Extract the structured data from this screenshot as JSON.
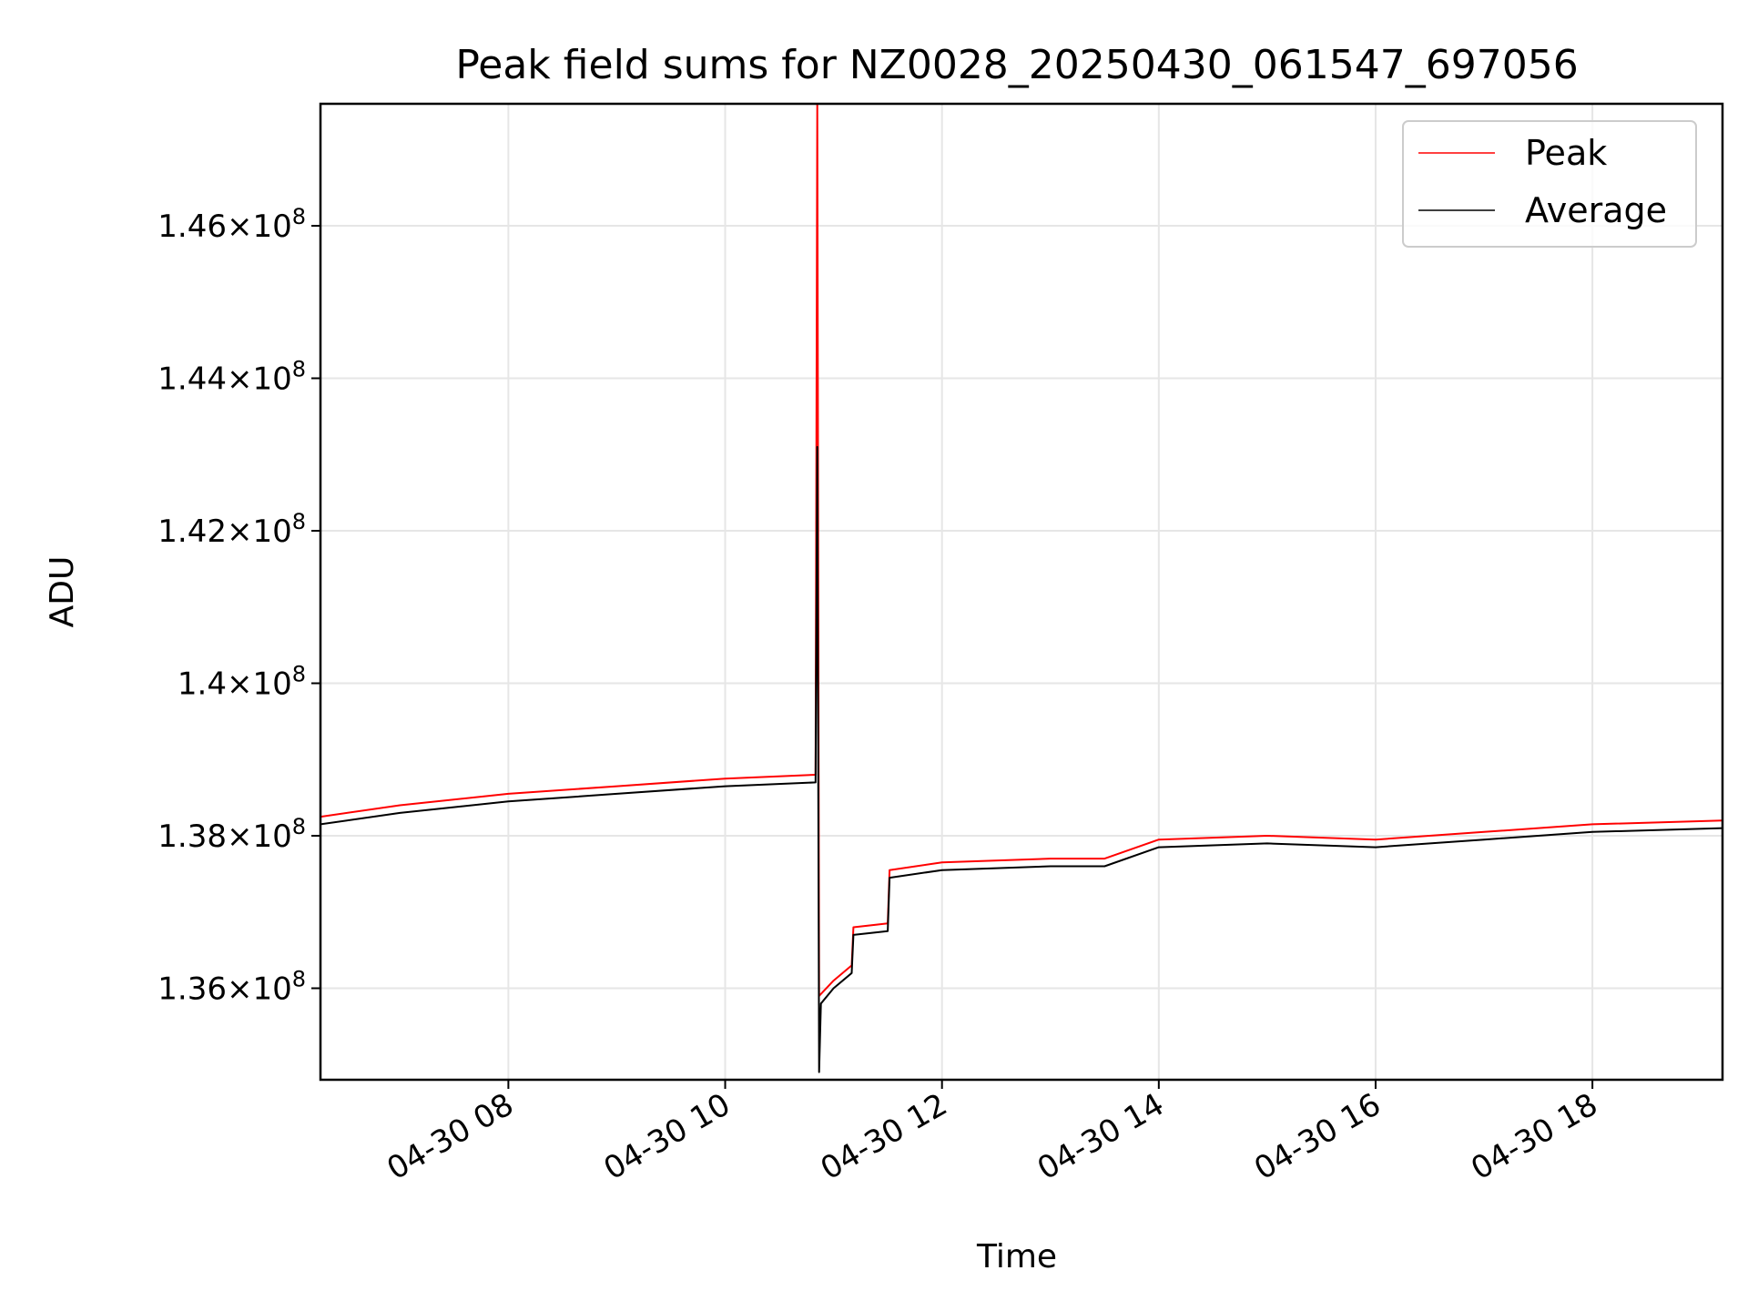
{
  "chart_data": {
    "type": "line",
    "title": "Peak field sums for NZ0028_20250430_061547_697056",
    "xlabel": "Time",
    "ylabel": "ADU",
    "x_range": [
      "2025-04-30 06:16",
      "2025-04-30 19:12"
    ],
    "ylim": [
      134800000,
      147600000
    ],
    "grid": true,
    "legend_position": "top-right",
    "x_ticks": [
      {
        "value": "2025-04-30 08:00",
        "label": "04-30 08"
      },
      {
        "value": "2025-04-30 10:00",
        "label": "04-30 10"
      },
      {
        "value": "2025-04-30 12:00",
        "label": "04-30 12"
      },
      {
        "value": "2025-04-30 14:00",
        "label": "04-30 14"
      },
      {
        "value": "2025-04-30 16:00",
        "label": "04-30 16"
      },
      {
        "value": "2025-04-30 18:00",
        "label": "04-30 18"
      }
    ],
    "y_ticks": [
      {
        "value": 136000000,
        "label": "1.36×10",
        "exp": "8"
      },
      {
        "value": 138000000,
        "label": "1.38×10",
        "exp": "8"
      },
      {
        "value": 140000000,
        "label": "1.4×10",
        "exp": "8"
      },
      {
        "value": 142000000,
        "label": "1.42×10",
        "exp": "8"
      },
      {
        "value": 144000000,
        "label": "1.44×10",
        "exp": "8"
      },
      {
        "value": 146000000,
        "label": "1.46×10",
        "exp": "8"
      }
    ],
    "series": [
      {
        "name": "Peak",
        "color": "#ff0000",
        "points": [
          [
            "2025-04-30 06:16",
            138250000
          ],
          [
            "2025-04-30 07:00",
            138400000
          ],
          [
            "2025-04-30 08:00",
            138550000
          ],
          [
            "2025-04-30 09:00",
            138650000
          ],
          [
            "2025-04-30 10:00",
            138750000
          ],
          [
            "2025-04-30 10:50",
            138800000
          ],
          [
            "2025-04-30 10:51",
            147600000
          ],
          [
            "2025-04-30 10:52",
            135900000
          ],
          [
            "2025-04-30 11:00",
            136100000
          ],
          [
            "2025-04-30 11:10",
            136300000
          ],
          [
            "2025-04-30 11:11",
            136800000
          ],
          [
            "2025-04-30 11:30",
            136850000
          ],
          [
            "2025-04-30 11:31",
            137550000
          ],
          [
            "2025-04-30 12:00",
            137650000
          ],
          [
            "2025-04-30 13:00",
            137700000
          ],
          [
            "2025-04-30 13:30",
            137700000
          ],
          [
            "2025-04-30 14:00",
            137950000
          ],
          [
            "2025-04-30 15:00",
            138000000
          ],
          [
            "2025-04-30 16:00",
            137950000
          ],
          [
            "2025-04-30 17:00",
            138050000
          ],
          [
            "2025-04-30 18:00",
            138150000
          ],
          [
            "2025-04-30 19:12",
            138200000
          ]
        ]
      },
      {
        "name": "Average",
        "color": "#000000",
        "points": [
          [
            "2025-04-30 06:16",
            138150000
          ],
          [
            "2025-04-30 07:00",
            138300000
          ],
          [
            "2025-04-30 08:00",
            138450000
          ],
          [
            "2025-04-30 09:00",
            138550000
          ],
          [
            "2025-04-30 10:00",
            138650000
          ],
          [
            "2025-04-30 10:50",
            138700000
          ],
          [
            "2025-04-30 10:51",
            143100000
          ],
          [
            "2025-04-30 10:52",
            134900000
          ],
          [
            "2025-04-30 10:53",
            135800000
          ],
          [
            "2025-04-30 11:00",
            136000000
          ],
          [
            "2025-04-30 11:10",
            136200000
          ],
          [
            "2025-04-30 11:11",
            136700000
          ],
          [
            "2025-04-30 11:30",
            136750000
          ],
          [
            "2025-04-30 11:31",
            137450000
          ],
          [
            "2025-04-30 12:00",
            137550000
          ],
          [
            "2025-04-30 13:00",
            137600000
          ],
          [
            "2025-04-30 13:30",
            137600000
          ],
          [
            "2025-04-30 14:00",
            137850000
          ],
          [
            "2025-04-30 15:00",
            137900000
          ],
          [
            "2025-04-30 16:00",
            137850000
          ],
          [
            "2025-04-30 17:00",
            137950000
          ],
          [
            "2025-04-30 18:00",
            138050000
          ],
          [
            "2025-04-30 19:12",
            138100000
          ]
        ]
      }
    ]
  }
}
